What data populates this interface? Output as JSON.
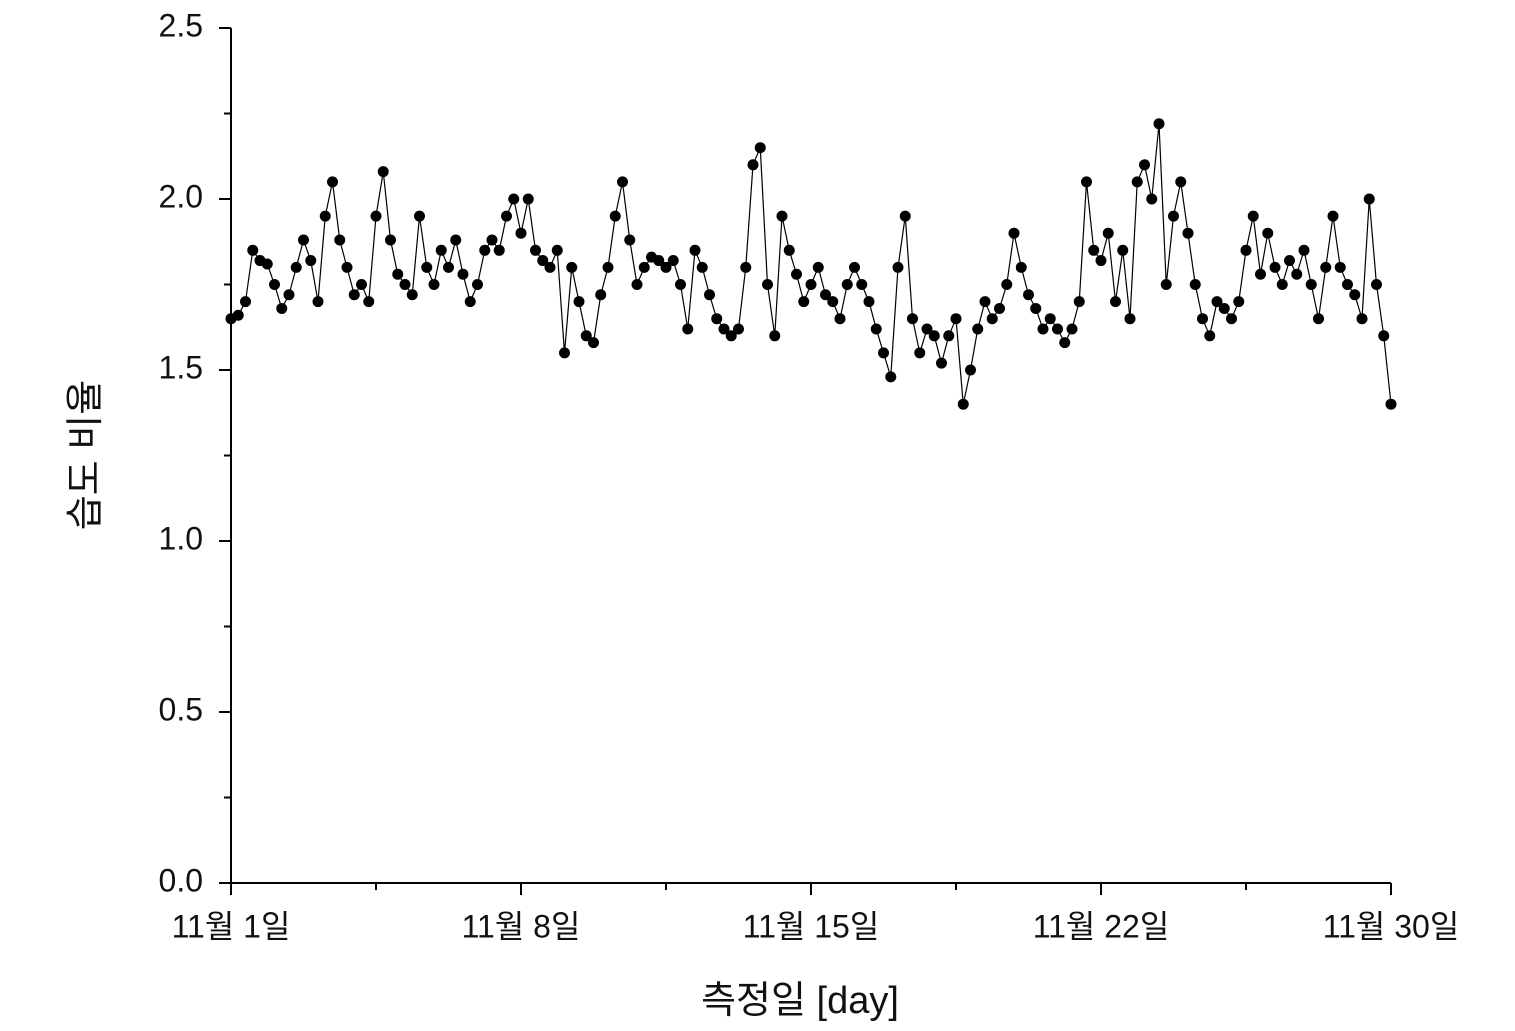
{
  "chart_data": {
    "type": "line",
    "x_label": "측정일 [day]",
    "y_label": "습도 비율",
    "x": [
      0,
      0.025,
      0.05,
      0.075,
      0.1,
      0.125,
      0.15,
      0.175,
      0.2,
      0.225,
      0.25,
      0.275,
      0.3,
      0.325,
      0.35,
      0.375,
      0.4,
      0.425,
      0.45,
      0.475,
      0.5,
      0.525,
      0.55,
      0.575,
      0.6,
      0.625,
      0.65,
      0.675,
      0.7,
      0.725,
      0.75,
      0.775,
      0.8,
      0.825,
      0.85,
      0.875,
      0.9,
      0.925,
      0.95,
      0.975,
      1,
      1.025,
      1.05,
      1.075,
      1.1,
      1.125,
      1.15,
      1.175,
      1.2,
      1.225,
      1.25,
      1.275,
      1.3,
      1.325,
      1.35,
      1.375,
      1.4,
      1.425,
      1.45,
      1.475,
      1.5,
      1.525,
      1.55,
      1.575,
      1.6,
      1.625,
      1.65,
      1.675,
      1.7,
      1.725,
      1.75,
      1.775,
      1.8,
      1.825,
      1.85,
      1.875,
      1.9,
      1.925,
      1.95,
      1.975,
      2,
      2.025,
      2.05,
      2.075,
      2.1,
      2.125,
      2.15,
      2.175,
      2.2,
      2.225,
      2.25,
      2.275,
      2.3,
      2.325,
      2.35,
      2.375,
      2.4,
      2.425,
      2.45,
      2.475,
      2.5,
      2.525,
      2.55,
      2.575,
      2.6,
      2.625,
      2.65,
      2.675,
      2.7,
      2.725,
      2.75,
      2.775,
      2.8,
      2.825,
      2.85,
      2.875,
      2.9,
      2.925,
      2.95,
      2.975,
      3,
      3.025,
      3.05,
      3.075,
      3.1,
      3.125,
      3.15,
      3.175,
      3.2,
      3.225,
      3.25,
      3.275,
      3.3,
      3.325,
      3.35,
      3.375,
      3.4,
      3.425,
      3.45,
      3.475,
      3.5,
      3.525,
      3.55,
      3.575,
      3.6,
      3.625,
      3.65,
      3.675,
      3.7,
      3.725,
      3.75,
      3.775,
      3.8,
      3.825,
      3.85,
      3.875,
      3.9,
      3.925,
      3.95,
      3.975,
      4
    ],
    "series": [
      {
        "color": "#000000",
        "values": [
          1.65,
          1.66,
          1.7,
          1.85,
          1.82,
          1.81,
          1.75,
          1.68,
          1.72,
          1.8,
          1.88,
          1.82,
          1.7,
          1.95,
          2.05,
          1.88,
          1.8,
          1.72,
          1.75,
          1.7,
          1.95,
          2.08,
          1.88,
          1.78,
          1.75,
          1.72,
          1.95,
          1.8,
          1.75,
          1.85,
          1.8,
          1.88,
          1.78,
          1.7,
          1.75,
          1.85,
          1.88,
          1.85,
          1.95,
          2.0,
          1.9,
          2.0,
          1.85,
          1.82,
          1.8,
          1.85,
          1.55,
          1.8,
          1.7,
          1.6,
          1.58,
          1.72,
          1.8,
          1.95,
          2.05,
          1.88,
          1.75,
          1.8,
          1.83,
          1.82,
          1.8,
          1.82,
          1.75,
          1.62,
          1.85,
          1.8,
          1.72,
          1.65,
          1.62,
          1.6,
          1.62,
          1.8,
          2.1,
          2.15,
          1.75,
          1.6,
          1.95,
          1.85,
          1.78,
          1.7,
          1.75,
          1.8,
          1.72,
          1.7,
          1.65,
          1.75,
          1.8,
          1.75,
          1.7,
          1.62,
          1.55,
          1.48,
          1.8,
          1.95,
          1.65,
          1.55,
          1.62,
          1.6,
          1.52,
          1.6,
          1.65,
          1.4,
          1.5,
          1.62,
          1.7,
          1.65,
          1.68,
          1.75,
          1.9,
          1.8,
          1.72,
          1.68,
          1.62,
          1.65,
          1.62,
          1.58,
          1.62,
          1.7,
          2.05,
          1.85,
          1.82,
          1.9,
          1.7,
          1.85,
          1.65,
          2.05,
          2.1,
          2.0,
          2.22,
          1.75,
          1.95,
          2.05,
          1.9,
          1.75,
          1.65,
          1.6,
          1.7,
          1.68,
          1.65,
          1.7,
          1.85,
          1.95,
          1.78,
          1.9,
          1.8,
          1.75,
          1.82,
          1.78,
          1.85,
          1.75,
          1.65,
          1.8,
          1.95,
          1.8,
          1.75,
          1.72,
          1.65,
          2.0,
          1.75,
          1.6,
          1.4
        ]
      }
    ],
    "xlim": [
      0,
      4
    ],
    "xticks": [
      {
        "value": 0,
        "label": "11월 1일"
      },
      {
        "value": 1,
        "label": "11월 8일"
      },
      {
        "value": 2,
        "label": "11월 15일"
      },
      {
        "value": 3,
        "label": "11월 22일"
      },
      {
        "value": 4,
        "label": "11월 30일"
      }
    ],
    "ylim": [
      0,
      2.5
    ],
    "yticks": [
      {
        "value": 0,
        "label": "0.0"
      },
      0.5,
      {
        "value": 1,
        "label": "1.0"
      },
      1.5,
      {
        "value": 2,
        "label": "2.0"
      },
      2.5
    ],
    "grid": false
  }
}
